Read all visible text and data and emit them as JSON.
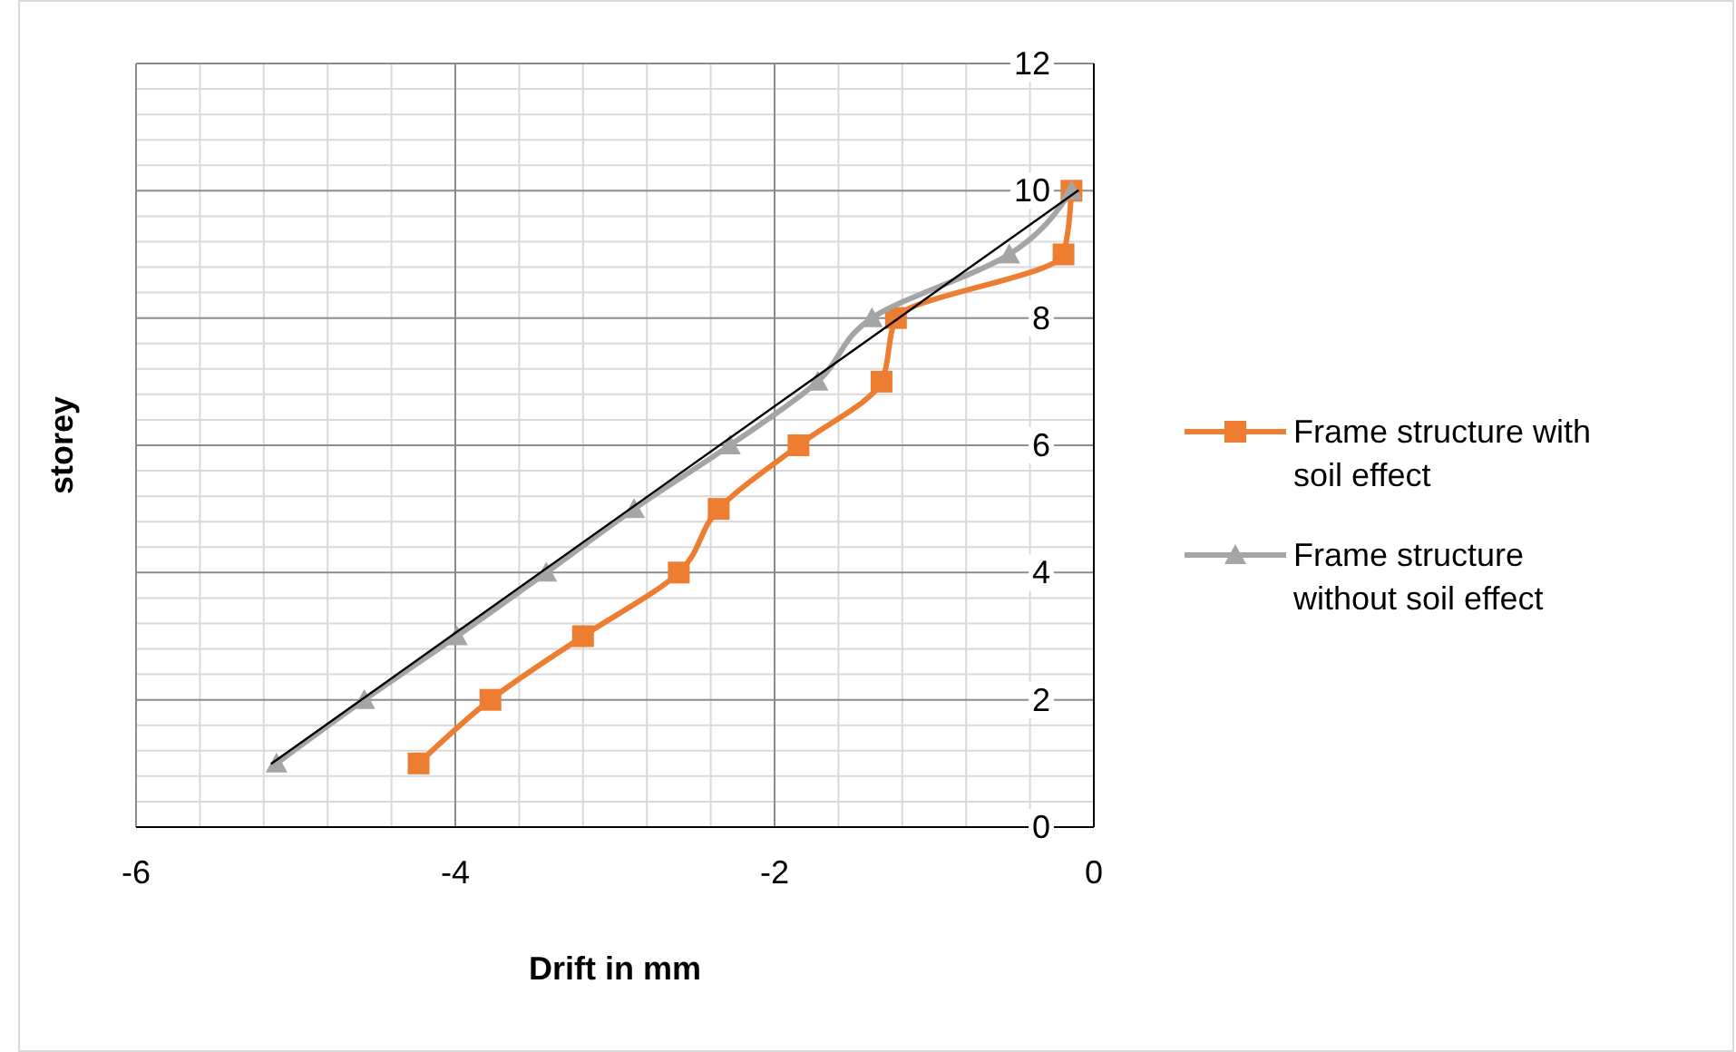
{
  "chart_data": {
    "type": "line",
    "xlabel": "Drift in mm",
    "ylabel": "storey",
    "xlim": [
      -6,
      0
    ],
    "xticks": [
      -6,
      -4,
      -2,
      0
    ],
    "ylim": [
      0,
      12
    ],
    "yticks": [
      0,
      2,
      4,
      6,
      8,
      10,
      12
    ],
    "grid": true,
    "legend": "right",
    "series": [
      {
        "name": "Frame structure with soil effect",
        "color": "#ed7d31",
        "marker": "square",
        "x": [
          -4.23,
          -3.78,
          -3.2,
          -2.6,
          -2.35,
          -1.85,
          -1.33,
          -1.24,
          -0.19,
          -0.14
        ],
        "values": [
          1,
          2,
          3,
          4,
          5,
          6,
          7,
          8,
          9,
          10
        ]
      },
      {
        "name": "Frame structure without soil effect",
        "color": "#a5a5a5",
        "marker": "triangle",
        "x": [
          -5.12,
          -4.57,
          -3.99,
          -3.43,
          -2.88,
          -2.28,
          -1.73,
          -1.39,
          -0.53,
          -0.14
        ],
        "values": [
          1,
          2,
          3,
          4,
          5,
          6,
          7,
          8,
          9,
          10
        ]
      },
      {
        "type": "line",
        "color": "#000000",
        "marker": "none",
        "x": [
          -5.15,
          -0.1
        ],
        "values": [
          1,
          10
        ]
      }
    ]
  }
}
